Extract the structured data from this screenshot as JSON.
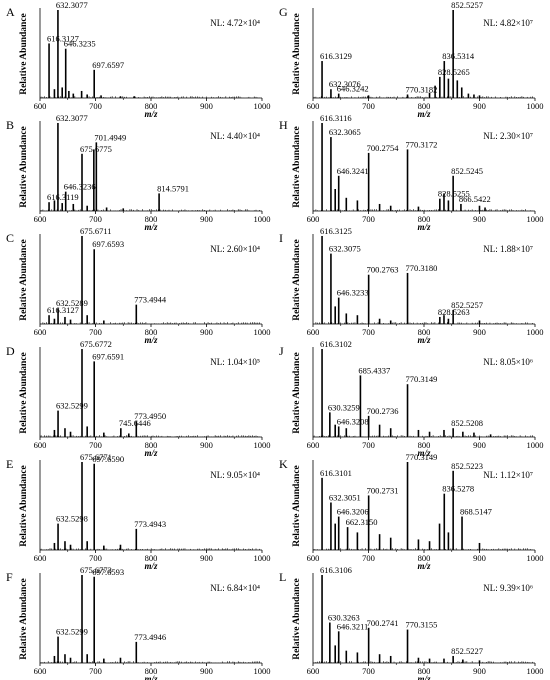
{
  "figure": {
    "xlabel": "m/z",
    "ylabel": "Relative Abundance",
    "xticks": [
      600,
      700,
      800,
      900,
      1000
    ]
  },
  "chart_data": [
    {
      "panel": "A",
      "type": "bar",
      "xlim": [
        600,
        1000
      ],
      "ylim": [
        0,
        100
      ],
      "nl": "NL: 4.72×10⁴",
      "peaks": [
        [
          632.3077,
          100
        ],
        [
          616.3127,
          62
        ],
        [
          646.3235,
          56
        ],
        [
          697.6597,
          32
        ],
        [
          626,
          10
        ],
        [
          640,
          12
        ],
        [
          652,
          8
        ],
        [
          660,
          5
        ],
        [
          675,
          8
        ],
        [
          685,
          4
        ],
        [
          710,
          3
        ],
        [
          745,
          2
        ],
        [
          770,
          2
        ]
      ],
      "labels": [
        {
          "text": "632.3077",
          "x": 632.3077,
          "y": 100
        },
        {
          "text": "616.3127",
          "x": 616.3127,
          "y": 62
        },
        {
          "text": "646.3235",
          "x": 646.3235,
          "y": 56
        },
        {
          "text": "697.6597",
          "x": 697.6597,
          "y": 32
        }
      ]
    },
    {
      "panel": "G",
      "type": "bar",
      "xlim": [
        600,
        1000
      ],
      "ylim": [
        0,
        100
      ],
      "nl": "NL: 4.82×10⁷",
      "peaks": [
        [
          852.5257,
          100
        ],
        [
          836.5314,
          42
        ],
        [
          828.5265,
          24
        ],
        [
          616.3129,
          42
        ],
        [
          632.3076,
          10
        ],
        [
          646.3242,
          5
        ],
        [
          770.3182,
          4
        ],
        [
          844,
          22
        ],
        [
          860,
          20
        ],
        [
          820,
          14
        ],
        [
          868,
          12
        ],
        [
          880,
          5
        ],
        [
          810,
          6
        ],
        [
          700,
          3
        ],
        [
          890,
          4
        ],
        [
          900,
          3
        ]
      ],
      "labels": [
        {
          "text": "852.5257",
          "x": 852.5257,
          "y": 100
        },
        {
          "text": "836.5314",
          "x": 836.5314,
          "y": 42
        },
        {
          "text": "828.5265",
          "x": 828.5265,
          "y": 24
        },
        {
          "text": "616.3129",
          "x": 616.3129,
          "y": 42
        },
        {
          "text": "632.3076",
          "x": 632.3076,
          "y": 10
        },
        {
          "text": "646.3242",
          "x": 646.3242,
          "y": 5
        },
        {
          "text": "770.3182",
          "x": 770.3182,
          "y": 4
        }
      ]
    },
    {
      "panel": "B",
      "type": "bar",
      "xlim": [
        600,
        1000
      ],
      "ylim": [
        0,
        100
      ],
      "nl": "NL: 4.40×10⁴",
      "peaks": [
        [
          632.3077,
          100
        ],
        [
          701.4949,
          78
        ],
        [
          675.6775,
          65
        ],
        [
          697,
          70
        ],
        [
          646.3236,
          22
        ],
        [
          616.3119,
          10
        ],
        [
          814.5791,
          20
        ],
        [
          626,
          12
        ],
        [
          640,
          9
        ],
        [
          660,
          8
        ],
        [
          685,
          6
        ],
        [
          720,
          4
        ],
        [
          750,
          3
        ]
      ],
      "labels": [
        {
          "text": "632.3077",
          "x": 632.3077,
          "y": 100
        },
        {
          "text": "701.4949",
          "x": 701.4949,
          "y": 78
        },
        {
          "text": "675.6775",
          "x": 675.6775,
          "y": 65
        },
        {
          "text": "646.3236",
          "x": 646.3236,
          "y": 22
        },
        {
          "text": "616.3119",
          "x": 616.3119,
          "y": 10
        },
        {
          "text": "814.5791",
          "x": 814.5791,
          "y": 20
        }
      ]
    },
    {
      "panel": "H",
      "type": "bar",
      "xlim": [
        600,
        1000
      ],
      "ylim": [
        0,
        100
      ],
      "nl": "NL: 2.30×10⁷",
      "peaks": [
        [
          616.3116,
          100
        ],
        [
          632.3065,
          84
        ],
        [
          700.2754,
          66
        ],
        [
          770.3172,
          70
        ],
        [
          646.3241,
          40
        ],
        [
          852.5245,
          40
        ],
        [
          828.5255,
          14
        ],
        [
          866.5422,
          8
        ],
        [
          640,
          25
        ],
        [
          660,
          15
        ],
        [
          680,
          12
        ],
        [
          720,
          8
        ],
        [
          740,
          6
        ],
        [
          836,
          20
        ],
        [
          844,
          12
        ],
        [
          900,
          6
        ],
        [
          910,
          4
        ],
        [
          790,
          5
        ]
      ],
      "labels": [
        {
          "text": "616.3116",
          "x": 616.3116,
          "y": 100
        },
        {
          "text": "632.3065",
          "x": 632.3065,
          "y": 84
        },
        {
          "text": "700.2754",
          "x": 700.2754,
          "y": 66
        },
        {
          "text": "770.3172",
          "x": 770.3172,
          "y": 70
        },
        {
          "text": "646.3241",
          "x": 646.3241,
          "y": 40
        },
        {
          "text": "852.5245",
          "x": 852.5245,
          "y": 40
        },
        {
          "text": "828.5255",
          "x": 828.5255,
          "y": 14
        },
        {
          "text": "866.5422",
          "x": 866.5422,
          "y": 8
        }
      ]
    },
    {
      "panel": "C",
      "type": "bar",
      "xlim": [
        600,
        1000
      ],
      "ylim": [
        0,
        100
      ],
      "nl": "NL: 2.60×10⁴",
      "peaks": [
        [
          675.6711,
          100
        ],
        [
          697.6593,
          85
        ],
        [
          632.5289,
          18
        ],
        [
          616.3127,
          10
        ],
        [
          773.4944,
          22
        ],
        [
          626,
          6
        ],
        [
          645,
          8
        ],
        [
          655,
          5
        ],
        [
          685,
          10
        ],
        [
          715,
          4
        ]
      ],
      "labels": [
        {
          "text": "675.6711",
          "x": 675.6711,
          "y": 100
        },
        {
          "text": "697.6593",
          "x": 697.6593,
          "y": 85
        },
        {
          "text": "632.5289",
          "x": 632.5289,
          "y": 18
        },
        {
          "text": "616.3127",
          "x": 616.3127,
          "y": 10
        },
        {
          "text": "773.4944",
          "x": 773.4944,
          "y": 22
        }
      ]
    },
    {
      "panel": "I",
      "type": "bar",
      "xlim": [
        600,
        1000
      ],
      "ylim": [
        0,
        100
      ],
      "nl": "NL: 1.88×10⁷",
      "peaks": [
        [
          616.3125,
          100
        ],
        [
          632.3075,
          80
        ],
        [
          700.2763,
          56
        ],
        [
          770.318,
          58
        ],
        [
          646.3233,
          30
        ],
        [
          852.5257,
          16
        ],
        [
          828.5263,
          8
        ],
        [
          640,
          20
        ],
        [
          660,
          12
        ],
        [
          680,
          10
        ],
        [
          720,
          6
        ],
        [
          740,
          4
        ],
        [
          836,
          10
        ],
        [
          844,
          6
        ],
        [
          900,
          4
        ]
      ],
      "labels": [
        {
          "text": "616.3125",
          "x": 616.3125,
          "y": 100
        },
        {
          "text": "632.3075",
          "x": 632.3075,
          "y": 80
        },
        {
          "text": "700.2763",
          "x": 700.2763,
          "y": 56
        },
        {
          "text": "770.3180",
          "x": 770.318,
          "y": 58
        },
        {
          "text": "646.3233",
          "x": 646.3233,
          "y": 30
        },
        {
          "text": "852.5257",
          "x": 852.5257,
          "y": 16
        },
        {
          "text": "828.5263",
          "x": 828.5263,
          "y": 8
        }
      ]
    },
    {
      "panel": "D",
      "type": "bar",
      "xlim": [
        600,
        1000
      ],
      "ylim": [
        0,
        100
      ],
      "nl": "NL: 1.04×10⁵",
      "peaks": [
        [
          675.6772,
          100
        ],
        [
          697.6591,
          86
        ],
        [
          632.5299,
          30
        ],
        [
          745.6446,
          10
        ],
        [
          773.495,
          18
        ],
        [
          626,
          8
        ],
        [
          645,
          10
        ],
        [
          655,
          6
        ],
        [
          685,
          12
        ],
        [
          715,
          5
        ],
        [
          760,
          4
        ]
      ],
      "labels": [
        {
          "text": "675.6772",
          "x": 675.6772,
          "y": 100
        },
        {
          "text": "697.6591",
          "x": 697.6591,
          "y": 86
        },
        {
          "text": "632.5299",
          "x": 632.5299,
          "y": 30
        },
        {
          "text": "745.6446",
          "x": 745.6446,
          "y": 10
        },
        {
          "text": "773.4950",
          "x": 773.495,
          "y": 18
        }
      ]
    },
    {
      "panel": "J",
      "type": "bar",
      "xlim": [
        600,
        1000
      ],
      "ylim": [
        0,
        100
      ],
      "nl": "NL: 8.05×10⁶",
      "peaks": [
        [
          616.3102,
          100
        ],
        [
          685.4337,
          70
        ],
        [
          770.3149,
          60
        ],
        [
          630.3259,
          28
        ],
        [
          700.2736,
          24
        ],
        [
          646.3208,
          12
        ],
        [
          852.5208,
          10
        ],
        [
          640,
          14
        ],
        [
          660,
          10
        ],
        [
          720,
          14
        ],
        [
          740,
          10
        ],
        [
          790,
          8
        ],
        [
          810,
          6
        ],
        [
          836,
          8
        ],
        [
          870,
          6
        ],
        [
          890,
          5
        ],
        [
          920,
          3
        ]
      ],
      "labels": [
        {
          "text": "616.3102",
          "x": 616.3102,
          "y": 100
        },
        {
          "text": "685.4337",
          "x": 685.4337,
          "y": 70
        },
        {
          "text": "770.3149",
          "x": 770.3149,
          "y": 60
        },
        {
          "text": "630.3259",
          "x": 630.3259,
          "y": 28
        },
        {
          "text": "700.2736",
          "x": 700.2736,
          "y": 24
        },
        {
          "text": "646.3208",
          "x": 646.3208,
          "y": 12
        },
        {
          "text": "852.5208",
          "x": 852.5208,
          "y": 10
        }
      ]
    },
    {
      "panel": "E",
      "type": "bar",
      "xlim": [
        600,
        1000
      ],
      "ylim": [
        0,
        100
      ],
      "nl": "NL: 9.05×10⁴",
      "peaks": [
        [
          675.6771,
          100
        ],
        [
          697.659,
          98
        ],
        [
          632.5298,
          30
        ],
        [
          773.4943,
          24
        ],
        [
          626,
          8
        ],
        [
          645,
          10
        ],
        [
          655,
          6
        ],
        [
          685,
          10
        ],
        [
          715,
          5
        ],
        [
          745,
          6
        ]
      ],
      "labels": [
        {
          "text": "675.6771",
          "x": 675.6771,
          "y": 100
        },
        {
          "text": "697.6590",
          "x": 697.659,
          "y": 98
        },
        {
          "text": "632.5298",
          "x": 632.5298,
          "y": 30
        },
        {
          "text": "773.4943",
          "x": 773.4943,
          "y": 24
        }
      ]
    },
    {
      "panel": "K",
      "type": "bar",
      "xlim": [
        600,
        1000
      ],
      "ylim": [
        0,
        100
      ],
      "nl": "NL: 1.12×10⁷",
      "peaks": [
        [
          770.3149,
          100
        ],
        [
          852.5223,
          90
        ],
        [
          836.5278,
          64
        ],
        [
          700.2731,
          62
        ],
        [
          868.5147,
          38
        ],
        [
          616.3101,
          82
        ],
        [
          632.3051,
          54
        ],
        [
          646.3206,
          38
        ],
        [
          662.315,
          26
        ],
        [
          640,
          30
        ],
        [
          680,
          20
        ],
        [
          720,
          18
        ],
        [
          740,
          14
        ],
        [
          790,
          12
        ],
        [
          810,
          10
        ],
        [
          828,
          30
        ],
        [
          844,
          20
        ],
        [
          900,
          8
        ]
      ],
      "labels": [
        {
          "text": "770.3149",
          "x": 770.3149,
          "y": 100
        },
        {
          "text": "852.5223",
          "x": 852.5223,
          "y": 90
        },
        {
          "text": "836.5278",
          "x": 836.5278,
          "y": 64
        },
        {
          "text": "700.2731",
          "x": 700.2731,
          "y": 62
        },
        {
          "text": "868.5147",
          "x": 868.5147,
          "y": 38
        },
        {
          "text": "616.3101",
          "x": 616.3101,
          "y": 82
        },
        {
          "text": "632.3051",
          "x": 632.3051,
          "y": 54
        },
        {
          "text": "646.3206",
          "x": 646.3206,
          "y": 38
        },
        {
          "text": "662.3150",
          "x": 662.315,
          "y": 26
        }
      ]
    },
    {
      "panel": "F",
      "type": "bar",
      "xlim": [
        600,
        1000
      ],
      "ylim": [
        0,
        100
      ],
      "nl": "NL: 6.84×10⁴",
      "peaks": [
        [
          675.6773,
          100
        ],
        [
          697.6593,
          98
        ],
        [
          632.5299,
          30
        ],
        [
          773.4946,
          24
        ],
        [
          626,
          8
        ],
        [
          645,
          10
        ],
        [
          655,
          6
        ],
        [
          685,
          10
        ],
        [
          715,
          5
        ],
        [
          745,
          6
        ]
      ],
      "labels": [
        {
          "text": "675.6773",
          "x": 675.6773,
          "y": 100
        },
        {
          "text": "697.6593",
          "x": 697.6593,
          "y": 98
        },
        {
          "text": "632.5299",
          "x": 632.5299,
          "y": 30
        },
        {
          "text": "773.4946",
          "x": 773.4946,
          "y": 24
        }
      ]
    },
    {
      "panel": "L",
      "type": "bar",
      "xlim": [
        600,
        1000
      ],
      "ylim": [
        0,
        100
      ],
      "nl": "NL: 9.39×10⁶",
      "peaks": [
        [
          616.3106,
          100
        ],
        [
          630.3263,
          46
        ],
        [
          646.3211,
          36
        ],
        [
          700.2741,
          40
        ],
        [
          770.3155,
          38
        ],
        [
          852.5227,
          8
        ],
        [
          640,
          20
        ],
        [
          660,
          14
        ],
        [
          680,
          12
        ],
        [
          720,
          10
        ],
        [
          740,
          8
        ],
        [
          790,
          6
        ],
        [
          810,
          5
        ],
        [
          836,
          5
        ],
        [
          870,
          4
        ],
        [
          900,
          3
        ]
      ],
      "labels": [
        {
          "text": "616.3106",
          "x": 616.3106,
          "y": 100
        },
        {
          "text": "630.3263",
          "x": 630.3263,
          "y": 46
        },
        {
          "text": "646.3211",
          "x": 646.3211,
          "y": 36
        },
        {
          "text": "700.2741",
          "x": 700.2741,
          "y": 40
        },
        {
          "text": "770.3155",
          "x": 770.3155,
          "y": 38
        },
        {
          "text": "852.5227",
          "x": 852.5227,
          "y": 8
        }
      ]
    }
  ]
}
